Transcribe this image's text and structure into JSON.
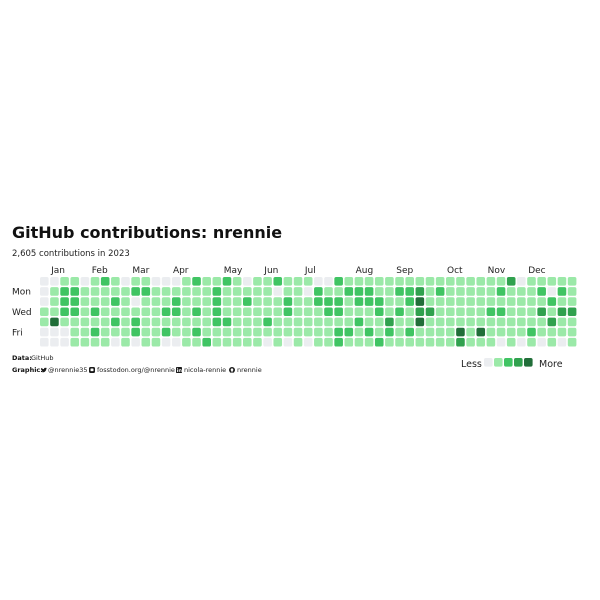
{
  "title": "GitHub contributions: nrennie",
  "subtitle": "2,605 contributions in 2023",
  "caption": {
    "data_label": "Data:",
    "data_value": "GitHub",
    "graphic_label": "Graphic:",
    "handles": [
      {
        "icon": "twitter-icon",
        "text": "@nrennie35"
      },
      {
        "icon": "mastodon-icon",
        "text": "fosstodon.org/@nrennie"
      },
      {
        "icon": "linkedin-icon",
        "text": "nicola-rennie"
      },
      {
        "icon": "github-icon",
        "text": "nrennie"
      }
    ]
  },
  "legend": {
    "less": "Less",
    "more": "More"
  },
  "colors": [
    "#ebedf0",
    "#9be9a8",
    "#40c463",
    "#30a14e",
    "#216e39"
  ],
  "chart_data": {
    "type": "heatmap",
    "year": 2023,
    "weeks": 53,
    "row_labels": [
      {
        "row": 1,
        "label": "Mon"
      },
      {
        "row": 3,
        "label": "Wed"
      },
      {
        "row": 5,
        "label": "Fri"
      }
    ],
    "month_labels": [
      {
        "week": 1,
        "label": "Jan"
      },
      {
        "week": 5,
        "label": "Feb"
      },
      {
        "week": 9,
        "label": "Mar"
      },
      {
        "week": 13,
        "label": "Apr"
      },
      {
        "week": 18,
        "label": "May"
      },
      {
        "week": 22,
        "label": "Jun"
      },
      {
        "week": 26,
        "label": "Jul"
      },
      {
        "week": 31,
        "label": "Aug"
      },
      {
        "week": 35,
        "label": "Sep"
      },
      {
        "week": 40,
        "label": "Oct"
      },
      {
        "week": 44,
        "label": "Nov"
      },
      {
        "week": 48,
        "label": "Dec"
      }
    ],
    "levels": [
      "00110121011000121121011211100211111111111111113011111",
      "01221111122111111211111011021122211223121111121112021",
      "01221112101112111211211121122212221124111111111111211",
      "11221211111122121211111121112211121213311111221113133",
      "14111112121111111221112111111112113114111111111111311",
      "00011211121121121111111111111221212121111414111121111",
      "00011110101100112111110101011211121111111311101010101"
    ]
  }
}
